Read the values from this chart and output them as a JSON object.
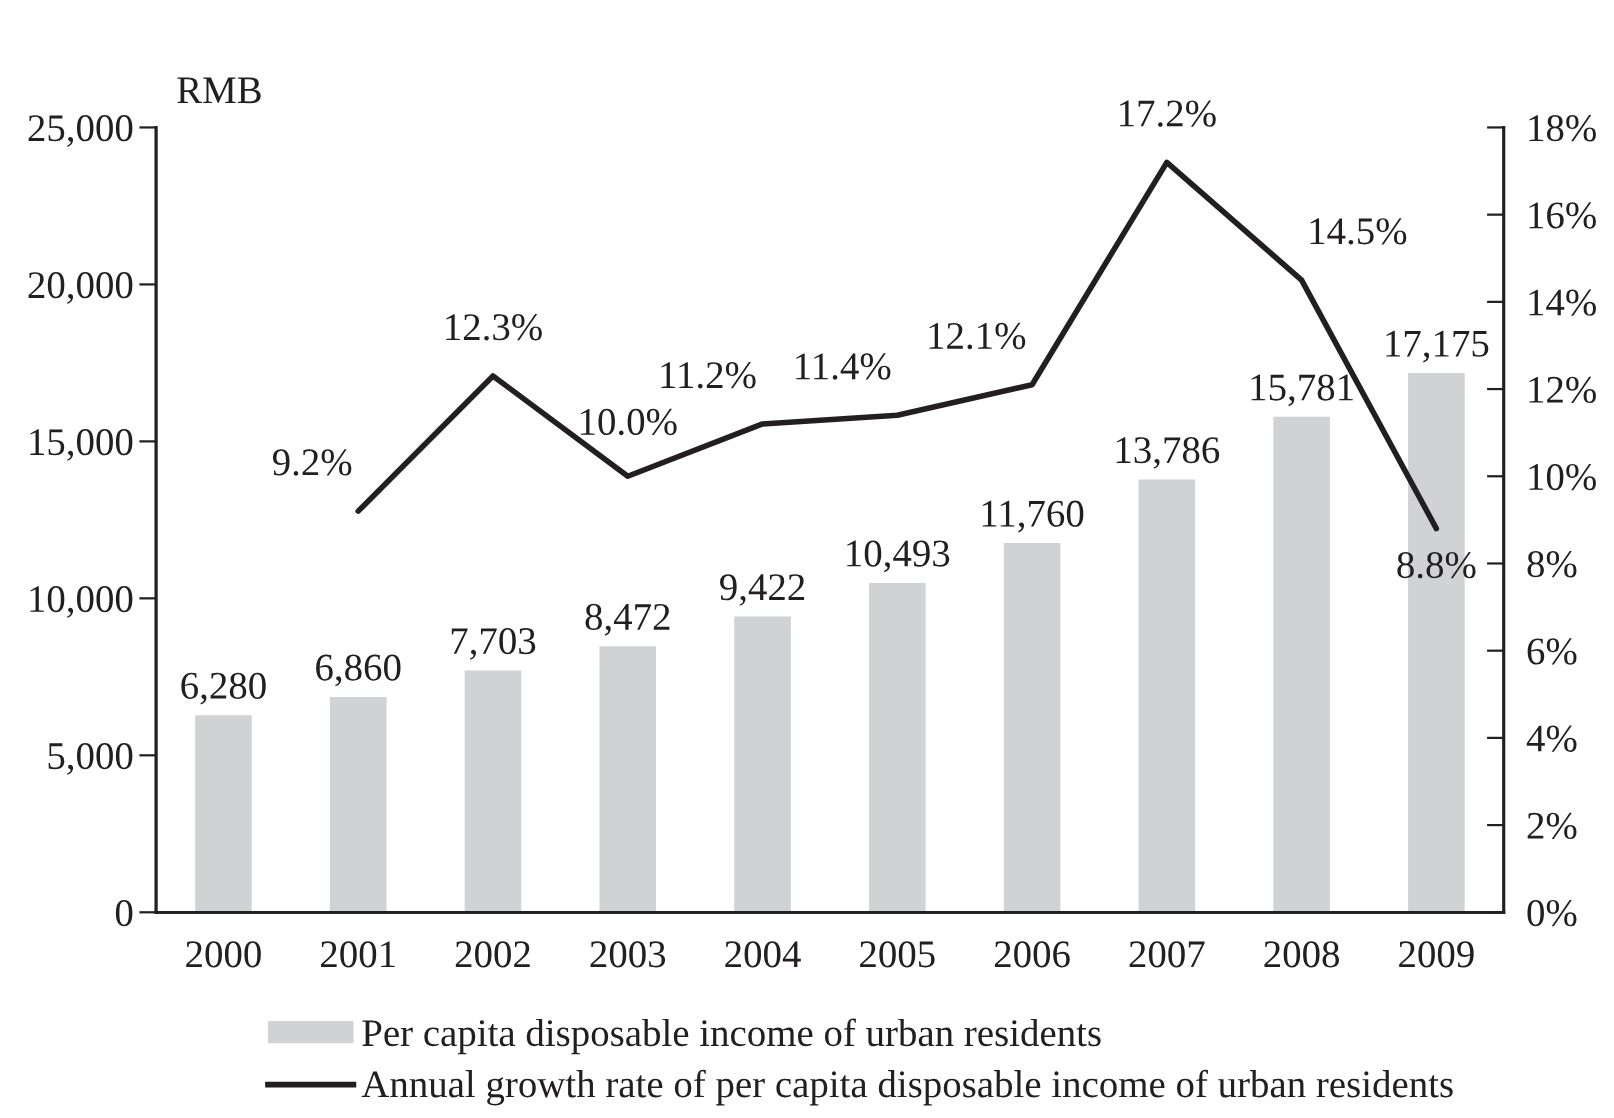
{
  "chart_data": {
    "type": "bar",
    "ylabel": "RMB",
    "categories": [
      "2000",
      "2001",
      "2002",
      "2003",
      "2004",
      "2005",
      "2006",
      "2007",
      "2008",
      "2009"
    ],
    "series": [
      {
        "name": "Per capita disposable income of urban residents",
        "color": "#d1d2d4",
        "values": [
          6280,
          6860,
          7703,
          8472,
          9422,
          10493,
          11760,
          13786,
          15781,
          17175
        ],
        "value_labels": [
          "6,280",
          "6,860",
          "7,703",
          "8,472",
          "9,422",
          "10,493",
          "11,760",
          "13,786",
          "15,781",
          "17,175"
        ]
      },
      {
        "name": "Annual growth rate of per capita disposable income of urban residents",
        "type": "line",
        "axis": "y2",
        "color": "#231f20",
        "values": [
          null,
          9.2,
          12.3,
          10.0,
          11.2,
          11.4,
          12.1,
          17.2,
          14.5,
          8.8
        ],
        "value_labels": [
          null,
          "9.2%",
          "12.3%",
          "10.0%",
          "11.2%",
          "11.4%",
          "12.1%",
          "17.2%",
          "14.5%",
          "8.8%"
        ]
      }
    ],
    "ylim": [
      0,
      25000
    ],
    "yticks": [
      0,
      {
        "value": 5000,
        "label": "5,000"
      },
      {
        "value": 10000,
        "label": "10,000"
      },
      {
        "value": 15000,
        "label": "15,000"
      },
      {
        "value": 20000,
        "label": "20,000"
      },
      {
        "value": 25000,
        "label": "25,000"
      }
    ],
    "y2lim": [
      0,
      18
    ],
    "y2ticks": [
      {
        "value": 0,
        "label": "0%"
      },
      {
        "value": 2,
        "label": "2%"
      },
      {
        "value": 4,
        "label": "4%"
      },
      {
        "value": 6,
        "label": "6%"
      },
      {
        "value": 8,
        "label": "8%"
      },
      {
        "value": 10,
        "label": "10%"
      },
      {
        "value": 12,
        "label": "12%"
      },
      {
        "value": 14,
        "label": "14%"
      },
      {
        "value": 16,
        "label": "16%"
      },
      {
        "value": 18,
        "label": "18%"
      }
    ],
    "legend": "bottom",
    "line_style": "solid"
  }
}
